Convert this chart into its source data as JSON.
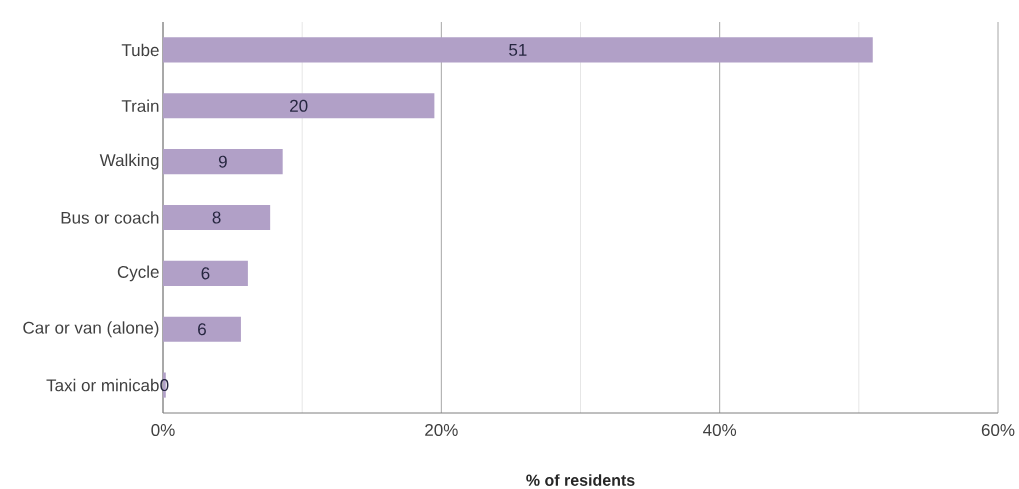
{
  "chart_data": {
    "type": "bar",
    "orientation": "horizontal",
    "categories": [
      "Tube",
      "Train",
      "Walking",
      "Bus or coach",
      "Cycle",
      "Car or van (alone)",
      "Taxi or minicab"
    ],
    "values": [
      51,
      19.5,
      8.6,
      7.7,
      6.1,
      5.6,
      0.2
    ],
    "value_labels": [
      "51",
      "20",
      "9",
      "8",
      "6",
      "6",
      "0"
    ],
    "color": "#b1a0c7",
    "xlabel": "% of residents",
    "xlim": [
      0,
      60
    ],
    "xticks": [
      {
        "value": 0,
        "label": "0%"
      },
      {
        "value": 10,
        "label": null
      },
      {
        "value": 20,
        "label": "20%"
      },
      {
        "value": 30,
        "label": null
      },
      {
        "value": 40,
        "label": "40%"
      },
      {
        "value": 50,
        "label": null
      },
      {
        "value": 60,
        "label": "60%"
      }
    ],
    "grid": "x"
  }
}
